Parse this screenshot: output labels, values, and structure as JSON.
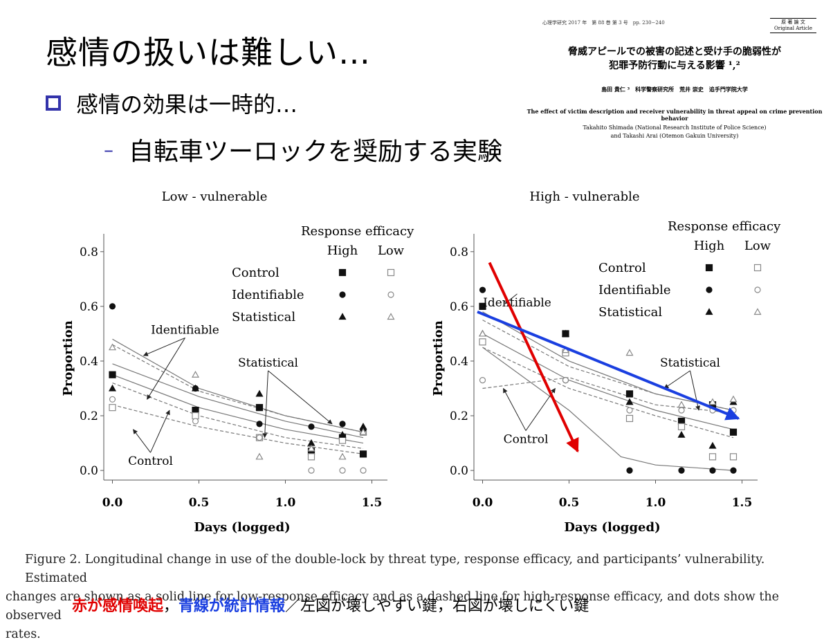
{
  "slide": {
    "title": "感情の扱いは難しい…",
    "bullet1": "感情の効果は一時的…",
    "bullet2": "自転車ツーロックを奨励する実験",
    "bullet2_marker": "–"
  },
  "paper": {
    "header": "心理学研究 2017 年　第 88 巻 第 3 号　pp. 230−240",
    "badge_line1": "原 著 論 文",
    "badge_line2": "Original Article",
    "jp_title_line1": "脅威アピールでの被害の記述と受け手の脆弱性が",
    "jp_title_line2": "犯罪予防行動に与える影響 ¹,²",
    "jp_authors": "島田 貴仁 ³　科学警察研究所　荒井 崇史　追手門学院大学",
    "en_title": "The effect of victim description and receiver vulnerability in threat appeal on crime prevention behavior",
    "en_authors_line1": "Takahito Shimada (National Research Institute of Police Science)",
    "en_authors_line2": "and Takashi Arai (Otemon Gakuin University)"
  },
  "legend": {
    "title": "Response efficacy",
    "col_high": "High",
    "col_low": "Low",
    "rows": [
      "Control",
      "Identifiable",
      "Statistical"
    ]
  },
  "chart_data": [
    {
      "type": "scatter",
      "title": "Low - vulnerable",
      "xlabel": "Days (logged)",
      "ylabel": "Proportion",
      "xlim": [
        -0.05,
        1.55
      ],
      "ylim": [
        -0.02,
        0.84
      ],
      "xticks": [
        "0.0",
        "0.5",
        "1.0",
        "1.5"
      ],
      "yticks": [
        "0.0",
        "0.2",
        "0.4",
        "0.6",
        "0.8"
      ],
      "legend_position": "top-right",
      "series": [
        {
          "name": "Control High",
          "marker": "square-filled",
          "x": [
            0,
            0.48,
            0.85,
            1.15,
            1.33,
            1.45
          ],
          "y": [
            0.35,
            0.22,
            0.23,
            0.07,
            0.12,
            0.06
          ]
        },
        {
          "name": "Control Low",
          "marker": "square-open",
          "x": [
            0,
            0.48,
            0.85,
            1.15,
            1.33,
            1.45
          ],
          "y": [
            0.23,
            0.2,
            0.12,
            0.05,
            0.11,
            0.14
          ]
        },
        {
          "name": "Identifiable High",
          "marker": "circle-filled",
          "x": [
            0,
            0.48,
            0.85,
            1.15,
            1.33,
            1.45
          ],
          "y": [
            0.6,
            0.3,
            0.17,
            0.16,
            0.17,
            0.15
          ]
        },
        {
          "name": "Identifiable Low",
          "marker": "circle-open",
          "x": [
            0,
            0.48,
            0.85,
            1.15,
            1.33,
            1.45
          ],
          "y": [
            0.26,
            0.18,
            0.12,
            0.0,
            0.0,
            0.0
          ]
        },
        {
          "name": "Statistical High",
          "marker": "triangle-filled",
          "x": [
            0,
            0.48,
            0.85,
            1.15,
            1.33,
            1.45
          ],
          "y": [
            0.3,
            0.3,
            0.28,
            0.1,
            0.13,
            0.16
          ]
        },
        {
          "name": "Statistical Low",
          "marker": "triangle-open",
          "x": [
            0,
            0.48,
            0.85,
            1.15,
            1.33,
            1.45
          ],
          "y": [
            0.45,
            0.35,
            0.05,
            0.08,
            0.05,
            0.14
          ]
        }
      ],
      "fitted_lines": [
        {
          "style": "solid",
          "x": [
            0,
            0.5,
            1.0,
            1.45
          ],
          "y": [
            0.48,
            0.3,
            0.2,
            0.14
          ]
        },
        {
          "style": "solid",
          "x": [
            0,
            0.5,
            1.0,
            1.45
          ],
          "y": [
            0.39,
            0.27,
            0.18,
            0.12
          ]
        },
        {
          "style": "solid",
          "x": [
            0,
            0.5,
            1.0,
            1.45
          ],
          "y": [
            0.35,
            0.23,
            0.15,
            0.1
          ]
        },
        {
          "style": "dashed",
          "x": [
            0,
            0.5,
            1.0,
            1.45
          ],
          "y": [
            0.46,
            0.29,
            0.2,
            0.14
          ]
        },
        {
          "style": "dashed",
          "x": [
            0,
            0.5,
            1.0,
            1.45
          ],
          "y": [
            0.32,
            0.2,
            0.12,
            0.08
          ]
        },
        {
          "style": "dashed",
          "x": [
            0,
            0.5,
            1.0,
            1.45
          ],
          "y": [
            0.24,
            0.16,
            0.1,
            0.06
          ]
        }
      ],
      "annotations": [
        {
          "text": "Identifiable",
          "x": 0.42,
          "y": 0.5,
          "arrows_to": [
            [
              0.18,
              0.42
            ],
            [
              0.2,
              0.26
            ]
          ]
        },
        {
          "text": "Statistical",
          "x": 0.9,
          "y": 0.38,
          "arrows_to": [
            [
              0.88,
              0.12
            ],
            [
              1.27,
              0.17
            ]
          ]
        },
        {
          "text": "Control",
          "x": 0.22,
          "y": 0.02,
          "arrows_to": [
            [
              0.12,
              0.15
            ],
            [
              0.33,
              0.22
            ]
          ]
        }
      ]
    },
    {
      "type": "scatter",
      "title": "High - vulnerable",
      "xlabel": "Days (logged)",
      "ylabel": "Proportion",
      "xlim": [
        -0.05,
        1.55
      ],
      "ylim": [
        -0.02,
        0.84
      ],
      "xticks": [
        "0.0",
        "0.5",
        "1.0",
        "1.5"
      ],
      "yticks": [
        "0.0",
        "0.2",
        "0.4",
        "0.6",
        "0.8"
      ],
      "legend_position": "top-right",
      "series": [
        {
          "name": "Control High",
          "marker": "square-filled",
          "x": [
            0,
            0.48,
            0.85,
            1.15,
            1.33,
            1.45
          ],
          "y": [
            0.6,
            0.5,
            0.28,
            0.18,
            0.24,
            0.14
          ]
        },
        {
          "name": "Control Low",
          "marker": "square-open",
          "x": [
            0,
            0.48,
            0.85,
            1.15,
            1.33,
            1.45
          ],
          "y": [
            0.47,
            0.43,
            0.19,
            0.16,
            0.05,
            0.05
          ]
        },
        {
          "name": "Identifiable High",
          "marker": "circle-filled",
          "x": [
            0,
            0.48,
            0.85,
            1.15,
            1.33,
            1.45
          ],
          "y": [
            0.66,
            0.33,
            0.0,
            0.0,
            0.0,
            0.0
          ]
        },
        {
          "name": "Identifiable Low",
          "marker": "circle-open",
          "x": [
            0,
            0.48,
            0.85,
            1.15,
            1.33,
            1.45
          ],
          "y": [
            0.33,
            0.33,
            0.22,
            0.22,
            0.22,
            0.22
          ]
        },
        {
          "name": "Statistical High",
          "marker": "triangle-filled",
          "x": [
            0,
            0.48,
            0.85,
            1.15,
            1.33,
            1.45
          ],
          "y": [
            0.5,
            0.5,
            0.25,
            0.13,
            0.09,
            0.25
          ]
        },
        {
          "name": "Statistical Low",
          "marker": "triangle-open",
          "x": [
            0,
            0.48,
            0.85,
            1.15,
            1.33,
            1.45
          ],
          "y": [
            0.5,
            0.44,
            0.43,
            0.24,
            0.25,
            0.26
          ]
        }
      ],
      "fitted_lines": [
        {
          "style": "solid",
          "x": [
            0,
            0.5,
            1.0,
            1.45
          ],
          "y": [
            0.58,
            0.4,
            0.28,
            0.22
          ]
        },
        {
          "style": "solid",
          "x": [
            0,
            0.5,
            1.0,
            1.45
          ],
          "y": [
            0.5,
            0.33,
            0.22,
            0.15
          ]
        },
        {
          "style": "solid",
          "x": [
            0,
            0.5,
            0.8,
            1.0,
            1.45
          ],
          "y": [
            0.45,
            0.22,
            0.05,
            0.02,
            0.0
          ]
        },
        {
          "style": "dashed",
          "x": [
            0,
            0.5,
            1.0,
            1.45
          ],
          "y": [
            0.55,
            0.38,
            0.28,
            0.22
          ]
        },
        {
          "style": "dashed",
          "x": [
            0,
            0.5,
            1.0,
            1.45
          ],
          "y": [
            0.45,
            0.3,
            0.2,
            0.12
          ]
        },
        {
          "style": "dashed",
          "x": [
            0,
            0.5,
            1.0,
            1.45
          ],
          "y": [
            0.3,
            0.34,
            0.24,
            0.21
          ]
        }
      ],
      "annotations": [
        {
          "text": "Identifiable",
          "x": 0.2,
          "y": 0.6,
          "arrows_to": [
            [
              0.13,
              0.61
            ]
          ]
        },
        {
          "text": "Statistical",
          "x": 1.2,
          "y": 0.38,
          "arrows_to": [
            [
              1.05,
              0.3
            ],
            [
              1.25,
              0.22
            ]
          ]
        },
        {
          "text": "Control",
          "x": 0.25,
          "y": 0.1,
          "arrows_to": [
            [
              0.12,
              0.3
            ],
            [
              0.42,
              0.3
            ]
          ]
        }
      ],
      "overlay_arrows": [
        {
          "color": "#e00000",
          "from": [
            0.04,
            0.76
          ],
          "to": [
            0.55,
            0.07
          ]
        },
        {
          "color": "#1a3fe0",
          "from": [
            -0.03,
            0.58
          ],
          "to": [
            1.48,
            0.19
          ]
        }
      ]
    }
  ],
  "caption": {
    "line1": "Figure 2. Longitudinal change in use of the double-lock by threat type, response efficacy, and participants’ vulnerability. Estimated",
    "line2": "changes are shown as a solid line for low-response efficacy and as a dashed line for high-response efficacy, and dots show the observed",
    "line3": "rates."
  },
  "note": {
    "red": "赤が感情喚起",
    "sep1": "，",
    "blue": "青線が統計情報",
    "rest": "／左図が壊しやすい鍵，右図が壊しにくい鍵"
  },
  "colors": {
    "red_arrow": "#e00000",
    "blue_arrow": "#1a3fe0",
    "bullet": "#3333aa"
  }
}
